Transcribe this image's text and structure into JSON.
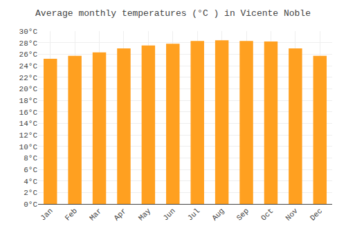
{
  "chart_data": {
    "type": "bar",
    "title": "Average monthly temperatures (°C ) in Vicente Noble",
    "categories": [
      "Jan",
      "Feb",
      "Mar",
      "Apr",
      "May",
      "Jun",
      "Jul",
      "Aug",
      "Sep",
      "Oct",
      "Nov",
      "Dec"
    ],
    "values": [
      25.2,
      25.7,
      26.3,
      27.0,
      27.5,
      27.8,
      28.3,
      28.4,
      28.3,
      28.2,
      27.0,
      25.7
    ],
    "color": "#FFA020",
    "ylim": [
      0,
      30
    ],
    "yticks": [
      {
        "value": 0,
        "label": "0°C"
      },
      {
        "value": 2,
        "label": "2°C"
      },
      {
        "value": 4,
        "label": "4°C"
      },
      {
        "value": 6,
        "label": "6°C"
      },
      {
        "value": 8,
        "label": "8°C"
      },
      {
        "value": 10,
        "label": "10°C"
      },
      {
        "value": 12,
        "label": "12°C"
      },
      {
        "value": 14,
        "label": "14°C"
      },
      {
        "value": 16,
        "label": "16°C"
      },
      {
        "value": 18,
        "label": "18°C"
      },
      {
        "value": 20,
        "label": "20°C"
      },
      {
        "value": 22,
        "label": "22°C"
      },
      {
        "value": 24,
        "label": "24°C"
      },
      {
        "value": 26,
        "label": "26°C"
      },
      {
        "value": 28,
        "label": "28°C"
      },
      {
        "value": 30,
        "label": "30°C"
      }
    ],
    "grid": true
  }
}
